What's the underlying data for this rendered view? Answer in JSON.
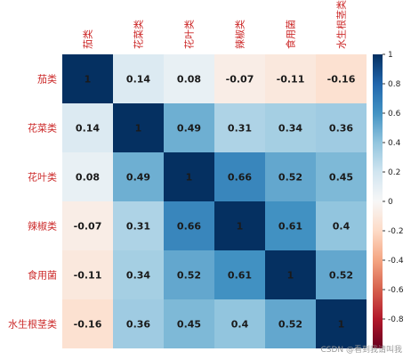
{
  "chart_data": {
    "type": "heatmap",
    "categories": [
      "茄类",
      "花菜类",
      "花叶类",
      "辣椒类",
      "食用菌",
      "水生根茎类"
    ],
    "matrix": [
      [
        1,
        0.14,
        0.08,
        -0.07,
        -0.11,
        -0.16
      ],
      [
        0.14,
        1,
        0.49,
        0.31,
        0.34,
        0.36
      ],
      [
        0.08,
        0.49,
        1,
        0.66,
        0.52,
        0.45
      ],
      [
        -0.07,
        0.31,
        0.66,
        1,
        0.61,
        0.4
      ],
      [
        -0.11,
        0.34,
        0.52,
        0.61,
        1,
        0.52
      ],
      [
        -0.16,
        0.36,
        0.45,
        0.4,
        0.52,
        1
      ]
    ],
    "cell_labels": [
      [
        "1",
        "0.14",
        "0.08",
        "-0.07",
        "-0.11",
        "-0.16"
      ],
      [
        "0.14",
        "1",
        "0.49",
        "0.31",
        "0.34",
        "0.36"
      ],
      [
        "0.08",
        "0.49",
        "1",
        "0.66",
        "0.52",
        "0.45"
      ],
      [
        "-0.07",
        "0.31",
        "0.66",
        "1",
        "0.61",
        "0.4"
      ],
      [
        "-0.11",
        "0.34",
        "0.52",
        "0.61",
        "1",
        "0.52"
      ],
      [
        "-0.16",
        "0.36",
        "0.45",
        "0.4",
        "0.52",
        "1"
      ]
    ],
    "value_range": [
      -1,
      1
    ],
    "colormap": "RdBu",
    "colorbar_ticks": [
      1,
      0.8,
      0.6,
      0.4,
      0.2,
      0,
      -0.2,
      -0.4,
      -0.6,
      -0.8
    ],
    "colorbar_tick_labels": [
      "1",
      "0.8",
      "0.6",
      "0.4",
      "0.2",
      "0",
      "-0.2",
      "-0.4",
      "-0.6",
      "-0.8"
    ],
    "label_color": "#cc2a2a",
    "colorbar_placement": "right"
  },
  "watermark": "CSDN @看到我请叫我"
}
